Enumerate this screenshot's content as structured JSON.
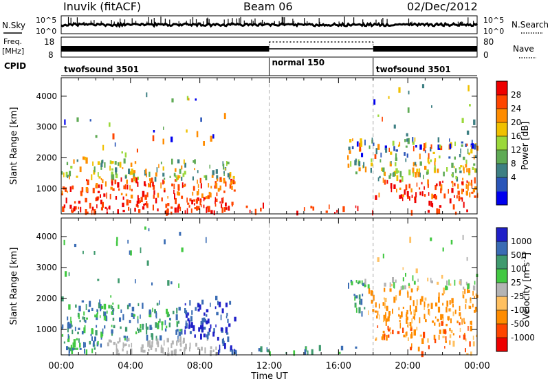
{
  "header": {
    "station": "Inuvik (fitACF)",
    "beam": "Beam 06",
    "date": "02/Dec/2012"
  },
  "top_panels": {
    "noise": {
      "left_label": "N.Sky",
      "right_label": "N.Search",
      "left_ticks": [
        "10^5",
        "10^0"
      ],
      "right_ticks": [
        "10^5",
        "10^0"
      ]
    },
    "freq": {
      "left_label_line1": "Freq.",
      "left_label_line2": "[MHz]",
      "right_label": "Nave",
      "left_ticks": [
        "18",
        "8"
      ],
      "right_ticks": [
        "80",
        "0"
      ]
    },
    "cpid": {
      "label": "CPID",
      "segments": [
        {
          "start_ut": "00:00",
          "end_ut": "12:00",
          "name": "twofsound 3501"
        },
        {
          "start_ut": "12:00",
          "end_ut": "18:00",
          "name": "normal 150"
        },
        {
          "start_ut": "18:00",
          "end_ut": "24:00",
          "name": "twofsound 3501"
        }
      ]
    }
  },
  "chart_data": [
    {
      "type": "heatmap",
      "title": "",
      "xlabel": "",
      "ylabel": "Slant Range [km]",
      "xlim": [
        0,
        24
      ],
      "ylim": [
        180,
        4600
      ],
      "yticks": [
        "1000",
        "2000",
        "3000",
        "4000"
      ],
      "colorbar": {
        "label": "Power [dB]",
        "ticks": [
          "4",
          "8",
          "12",
          "16",
          "20",
          "24",
          "28"
        ],
        "colors": [
          "#0000ee",
          "#2a55b8",
          "#3d7f83",
          "#5faa55",
          "#9bd83a",
          "#f0c000",
          "#ff8c00",
          "#ff4500",
          "#ee0000"
        ]
      }
    },
    {
      "type": "heatmap",
      "title": "",
      "xlabel": "Time UT",
      "ylabel": "Slant Range [km]",
      "xlim": [
        0,
        24
      ],
      "ylim": [
        180,
        4600
      ],
      "xticks": [
        "00:00",
        "04:00",
        "08:00",
        "12:00",
        "16:00",
        "20:00",
        "00:00"
      ],
      "yticks": [
        "1000",
        "2000",
        "3000",
        "4000"
      ],
      "colorbar": {
        "label": "Velocity [m s",
        "label_superscript": "-1",
        "label_suffix": "]",
        "ticks": [
          "1000",
          "500",
          "100",
          "25",
          "-25",
          "-100",
          "-500",
          "-1000"
        ],
        "colors": [
          "#2020c8",
          "#3a6cb4",
          "#3f9a6e",
          "#43c843",
          "#b4b4b4",
          "#ffc060",
          "#ff8c00",
          "#ff4500",
          "#ee0000"
        ]
      }
    }
  ],
  "annotations": {
    "dashed_lines_ut": [
      12,
      18
    ]
  }
}
